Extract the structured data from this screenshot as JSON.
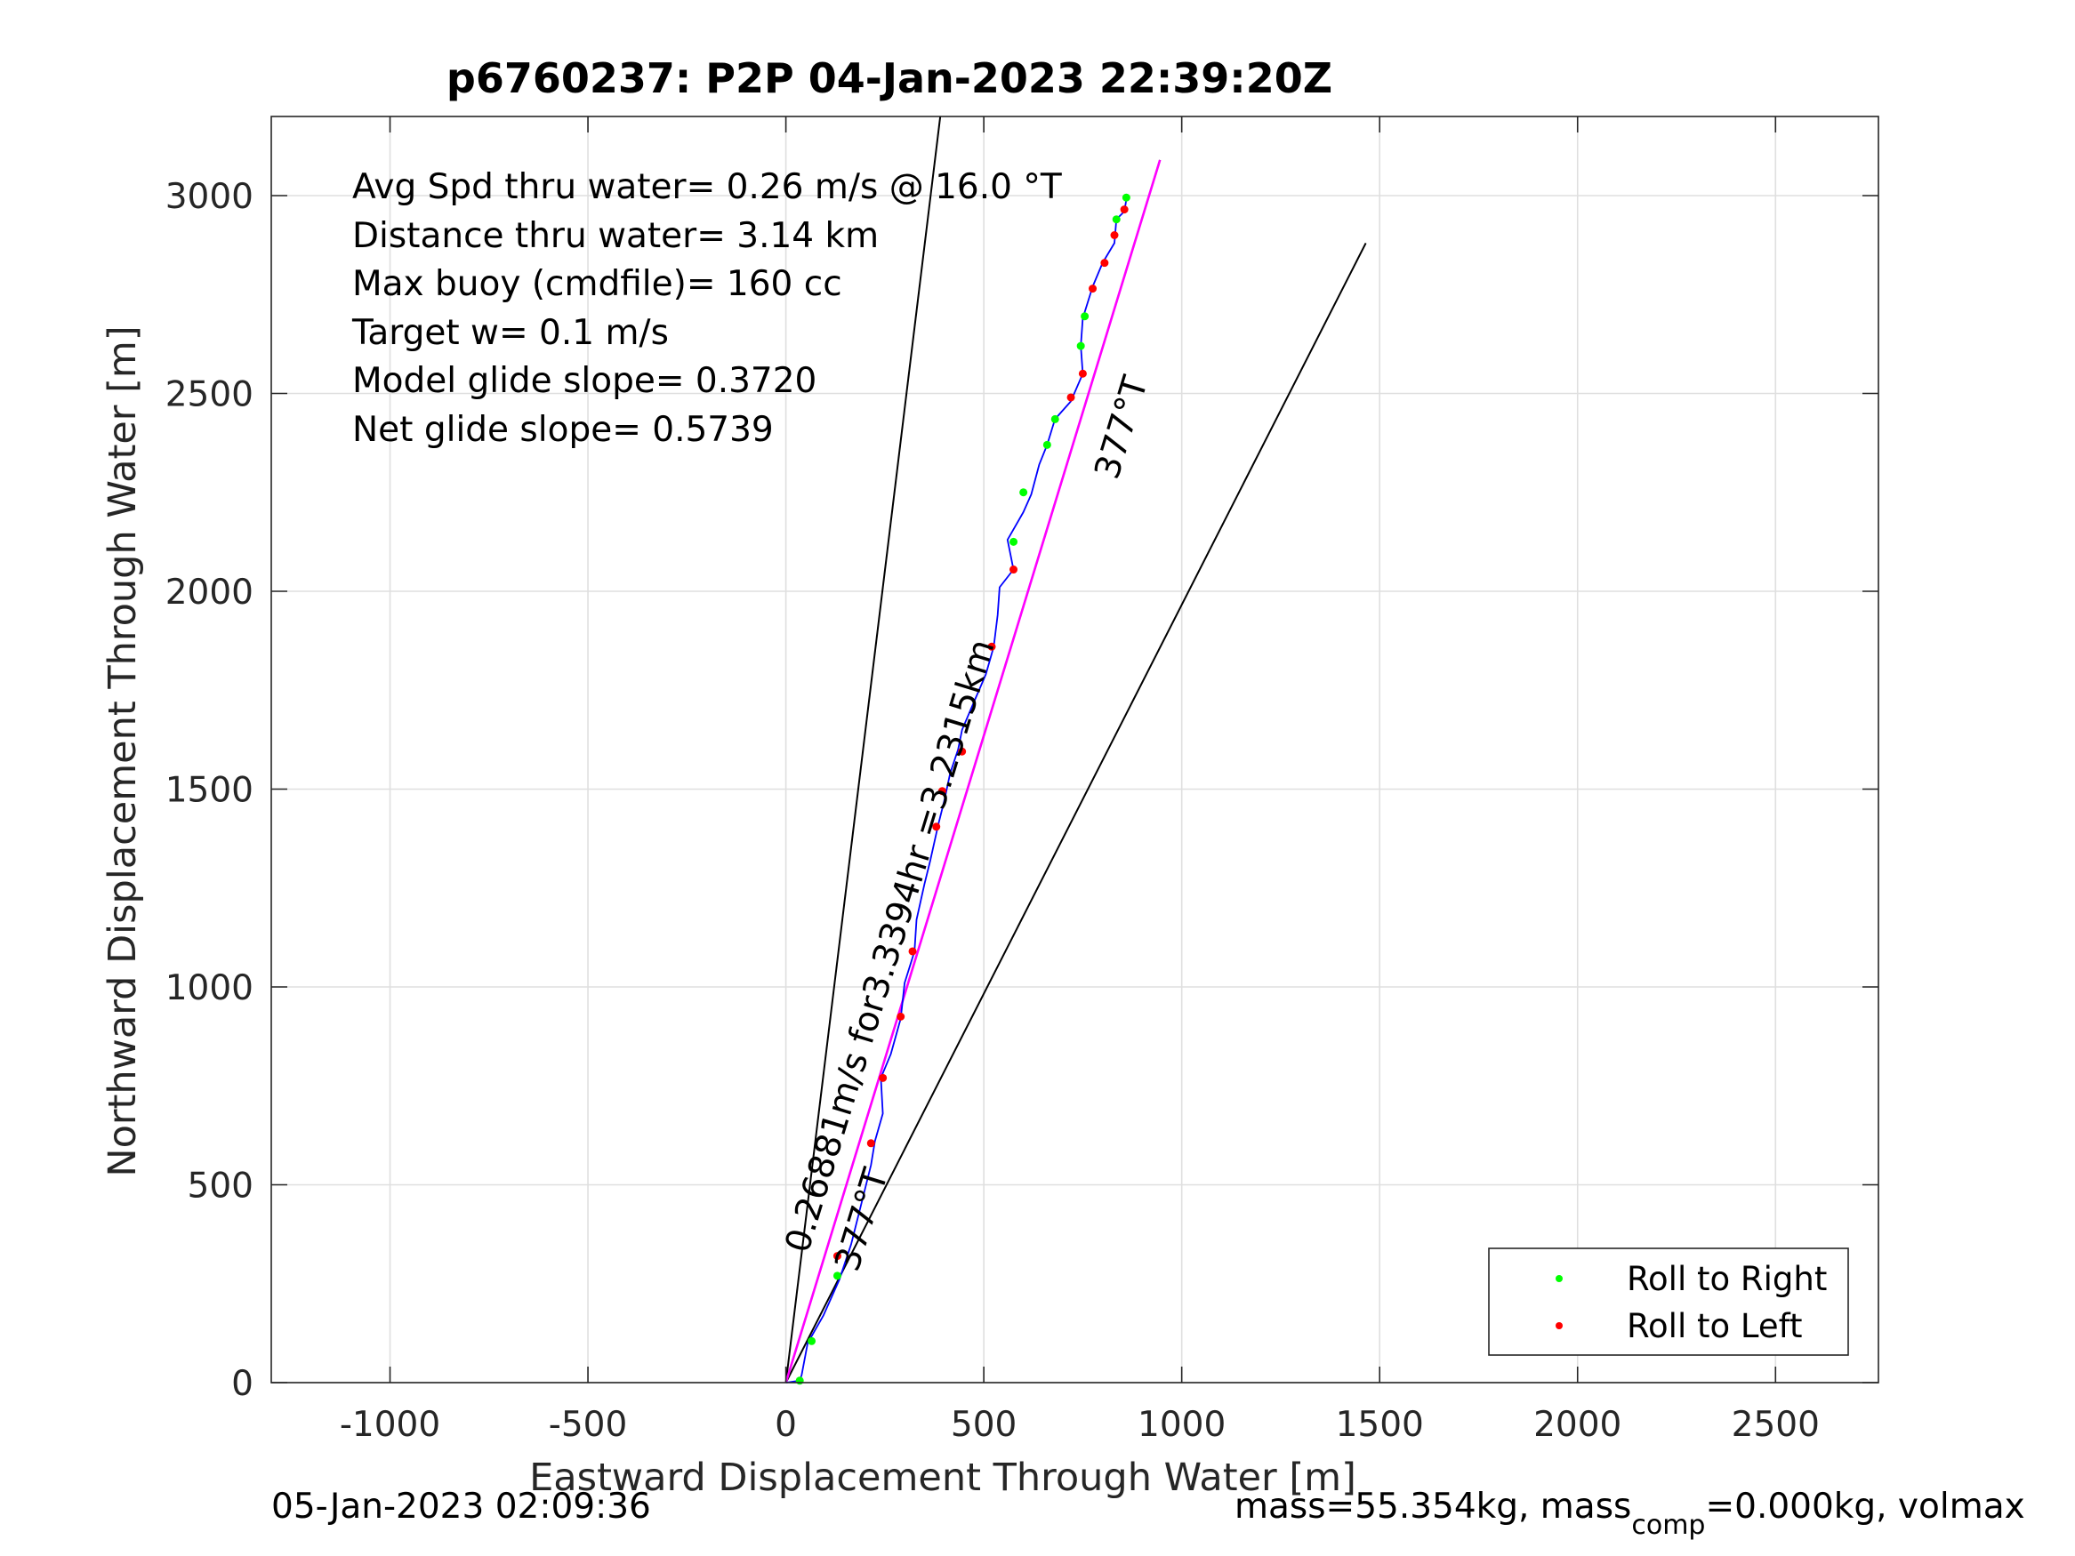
{
  "chart_data": {
    "type": "line",
    "title": "p6760237: P2P 04-Jan-2023 22:39:20Z",
    "xlabel": "Eastward Displacement Through Water [m]",
    "ylabel": "Northward Displacement Through Water [m]",
    "xlim": [
      -1300,
      2760
    ],
    "ylim": [
      0,
      3200
    ],
    "xticks": [
      -1000,
      -500,
      0,
      500,
      1000,
      1500,
      2000,
      2500
    ],
    "yticks": [
      0,
      500,
      1000,
      1500,
      2000,
      2500,
      3000
    ],
    "xtick_labels": [
      "-1000",
      "-500",
      "0",
      "500",
      "1000",
      "1500",
      "2000",
      "2500"
    ],
    "ytick_labels": [
      "0",
      "500",
      "1000",
      "1500",
      "2000",
      "2500",
      "3000"
    ],
    "grid": true,
    "legend_position": "bottom-right",
    "colors": {
      "track": "#0000ff",
      "right": "#00ff00",
      "left": "#ff0000",
      "magenta": "#ff00ff",
      "lines": "#000000"
    },
    "info_lines": [
      "Avg Spd thru water=  0.26 m/s @  16.0 °T",
      "Distance thru water=  3.14 km",
      "Max buoy (cmdfile)= 160 cc",
      "Target w= 0.1 m/s",
      "Model glide slope= 0.3720",
      "Net glide slope= 0.5739"
    ],
    "annotations": {
      "speed_label": "0.26881m/s for3.3394hr =3.2315km",
      "heading_upper": "377°T",
      "heading_lower": "377°T"
    },
    "legend": [
      {
        "label": "Roll to Right",
        "color": "#00ff00"
      },
      {
        "label": "Roll to Left",
        "color": "#ff0000"
      }
    ],
    "reference_lines": [
      {
        "name": "cone-left",
        "from": [
          0,
          0
        ],
        "to": [
          390,
          3200
        ]
      },
      {
        "name": "cone-right",
        "from": [
          0,
          0
        ],
        "to": [
          1465,
          2880
        ]
      },
      {
        "name": "heading-line",
        "from": [
          0,
          0
        ],
        "to": [
          945,
          3090
        ]
      },
      {
        "name": "magenta-line",
        "from": [
          0,
          0
        ],
        "to": [
          945,
          3090
        ]
      }
    ],
    "track": [
      [
        0,
        0
      ],
      [
        35,
        5
      ],
      [
        40,
        20
      ],
      [
        55,
        100
      ],
      [
        95,
        170
      ],
      [
        135,
        260
      ],
      [
        165,
        350
      ],
      [
        190,
        450
      ],
      [
        215,
        550
      ],
      [
        225,
        610
      ],
      [
        245,
        680
      ],
      [
        240,
        770
      ],
      [
        265,
        830
      ],
      [
        290,
        920
      ],
      [
        300,
        1010
      ],
      [
        325,
        1090
      ],
      [
        330,
        1170
      ],
      [
        350,
        1260
      ],
      [
        365,
        1320
      ],
      [
        385,
        1410
      ],
      [
        400,
        1470
      ],
      [
        415,
        1540
      ],
      [
        435,
        1600
      ],
      [
        445,
        1650
      ],
      [
        475,
        1720
      ],
      [
        505,
        1790
      ],
      [
        525,
        1860
      ],
      [
        535,
        1940
      ],
      [
        540,
        2010
      ],
      [
        575,
        2055
      ],
      [
        560,
        2130
      ],
      [
        600,
        2200
      ],
      [
        620,
        2245
      ],
      [
        640,
        2320
      ],
      [
        660,
        2370
      ],
      [
        680,
        2435
      ],
      [
        720,
        2480
      ],
      [
        750,
        2550
      ],
      [
        745,
        2620
      ],
      [
        750,
        2690
      ],
      [
        775,
        2770
      ],
      [
        800,
        2830
      ],
      [
        830,
        2880
      ],
      [
        835,
        2940
      ],
      [
        855,
        2960
      ],
      [
        860,
        2990
      ]
    ],
    "roll_right": [
      [
        35,
        5
      ],
      [
        65,
        105
      ],
      [
        130,
        270
      ],
      [
        600,
        2250
      ],
      [
        575,
        2125
      ],
      [
        680,
        2435
      ],
      [
        660,
        2370
      ],
      [
        745,
        2620
      ],
      [
        755,
        2695
      ],
      [
        835,
        2940
      ],
      [
        860,
        2995
      ]
    ],
    "roll_left": [
      [
        130,
        320
      ],
      [
        215,
        605
      ],
      [
        245,
        770
      ],
      [
        290,
        925
      ],
      [
        320,
        1090
      ],
      [
        380,
        1405
      ],
      [
        395,
        1495
      ],
      [
        445,
        1595
      ],
      [
        520,
        1860
      ],
      [
        575,
        2055
      ],
      [
        720,
        2490
      ],
      [
        750,
        2550
      ],
      [
        775,
        2765
      ],
      [
        805,
        2830
      ],
      [
        830,
        2900
      ],
      [
        855,
        2965
      ]
    ]
  },
  "footer": {
    "timestamp": "05-Jan-2023 02:09:36",
    "mass_text_prefix": "mass=55.354kg, mass",
    "mass_text_sub": "comp",
    "mass_text_suffix": "=0.000kg, volmax"
  }
}
